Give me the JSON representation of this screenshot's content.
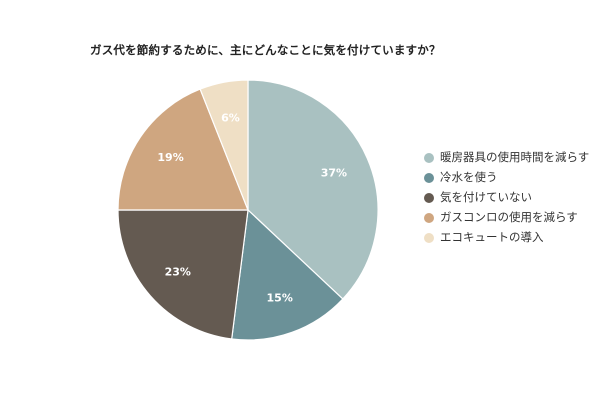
{
  "chart_data": {
    "type": "pie",
    "title": "ガス代を節約するために、主にどんなことに気を付けていますか？",
    "categories": [
      "暖房器具の使用時間を減らす",
      "冷水を使う",
      "気を付けていない",
      "ガスコンロの使用を減らす",
      "エコキュートの導入"
    ],
    "values": [
      37,
      15,
      23,
      19,
      6
    ],
    "data_labels": [
      "37%",
      "15%",
      "23%",
      "19%",
      "6%"
    ],
    "colors": [
      "#a9c1c1",
      "#6b9198",
      "#645a51",
      "#cfa680",
      "#efdfc5"
    ],
    "legend_position": "right"
  }
}
